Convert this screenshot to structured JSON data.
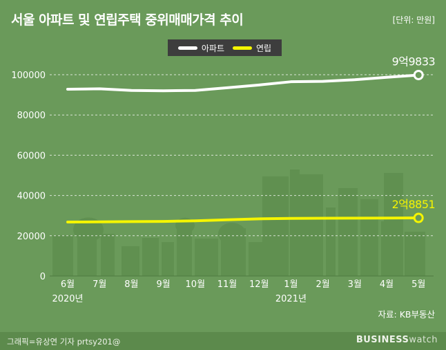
{
  "title": "서울 아파트 및 연립주택 중위매매가격 추이",
  "unit_label": "[단위: 만원]",
  "source": "자료: KB부동산",
  "credit": "그래픽=유상연 기자 prtsy201@",
  "brand": {
    "bold": "BUSINESS",
    "light": "watch"
  },
  "colors": {
    "background": "#6a9a5a",
    "apartment": "#ffffff",
    "villa": "#f5f500",
    "legend_bg": "#3d3d3d"
  },
  "chart_data": {
    "type": "line",
    "categories": [
      "6월",
      "7월",
      "8월",
      "9월",
      "10월",
      "11월",
      "12월",
      "1월",
      "2월",
      "3월",
      "4월",
      "5월"
    ],
    "year_labels": [
      {
        "category_index": 0,
        "label": "2020년"
      },
      {
        "category_index": 7,
        "label": "2021년"
      }
    ],
    "series": [
      {
        "name": "아파트",
        "color": "#ffffff",
        "values": [
          92800,
          93000,
          92200,
          92000,
          92200,
          93500,
          94900,
          96500,
          96700,
          97500,
          98700,
          99833
        ],
        "end_label": "9억9833"
      },
      {
        "name": "연립",
        "color": "#f5f500",
        "values": [
          26800,
          26900,
          27000,
          27100,
          27400,
          27900,
          28400,
          28600,
          28700,
          28750,
          28800,
          28851
        ],
        "end_label": "2억8851"
      }
    ],
    "yticks": [
      0,
      20000,
      40000,
      60000,
      80000,
      100000
    ],
    "ylim": [
      0,
      100000
    ],
    "grid": "dashed horizontal",
    "legend_position": "top-center"
  }
}
